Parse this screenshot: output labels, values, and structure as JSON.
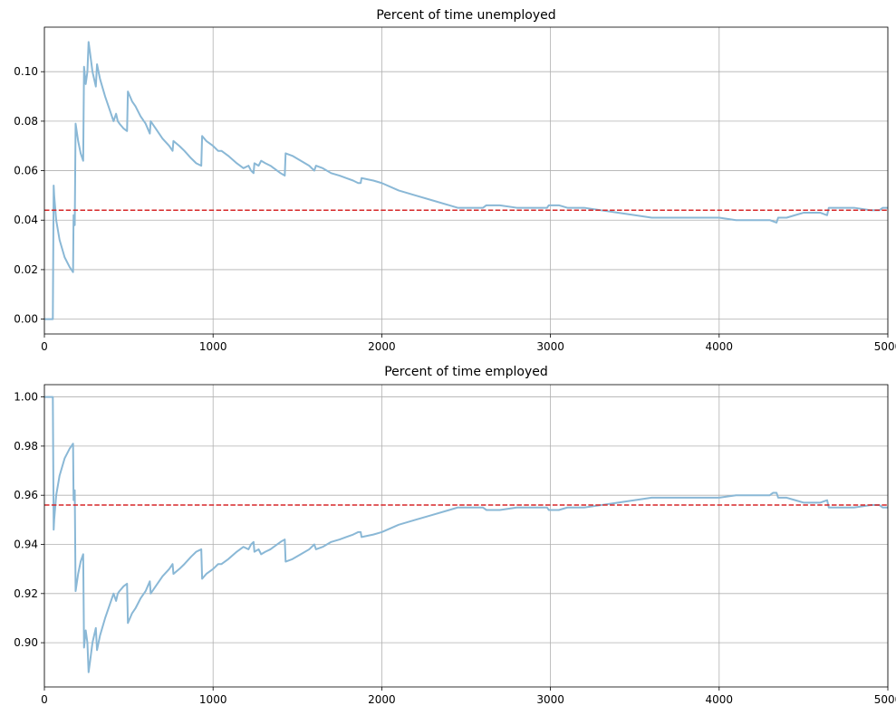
{
  "chart_data": [
    {
      "type": "line",
      "title": "Percent of time unemployed",
      "xlim": [
        0,
        5000
      ],
      "ylim": [
        -0.006,
        0.118
      ],
      "xticks": [
        0,
        1000,
        2000,
        3000,
        4000,
        5000
      ],
      "yticks": [
        0.0,
        0.02,
        0.04,
        0.06,
        0.08,
        0.1
      ],
      "ytick_decimals": 2,
      "grid": true,
      "series": [
        {
          "color": "#8ab8d6",
          "points": [
            [
              0,
              0
            ],
            [
              50,
              0
            ],
            [
              55,
              0.054
            ],
            [
              58,
              0.05
            ],
            [
              70,
              0.04
            ],
            [
              90,
              0.032
            ],
            [
              120,
              0.025
            ],
            [
              150,
              0.021
            ],
            [
              170,
              0.019
            ],
            [
              173,
              0.042
            ],
            [
              180,
              0.038
            ],
            [
              185,
              0.079
            ],
            [
              200,
              0.072
            ],
            [
              215,
              0.067
            ],
            [
              230,
              0.064
            ],
            [
              235,
              0.102
            ],
            [
              245,
              0.095
            ],
            [
              255,
              0.1
            ],
            [
              262,
              0.112
            ],
            [
              270,
              0.108
            ],
            [
              285,
              0.1
            ],
            [
              305,
              0.094
            ],
            [
              312,
              0.103
            ],
            [
              330,
              0.097
            ],
            [
              360,
              0.09
            ],
            [
              390,
              0.084
            ],
            [
              410,
              0.08
            ],
            [
              425,
              0.083
            ],
            [
              435,
              0.08
            ],
            [
              445,
              0.079
            ],
            [
              470,
              0.077
            ],
            [
              490,
              0.076
            ],
            [
              495,
              0.092
            ],
            [
              520,
              0.088
            ],
            [
              540,
              0.086
            ],
            [
              570,
              0.082
            ],
            [
              600,
              0.079
            ],
            [
              625,
              0.075
            ],
            [
              630,
              0.08
            ],
            [
              660,
              0.077
            ],
            [
              700,
              0.073
            ],
            [
              740,
              0.07
            ],
            [
              760,
              0.068
            ],
            [
              765,
              0.072
            ],
            [
              800,
              0.07
            ],
            [
              830,
              0.068
            ],
            [
              870,
              0.065
            ],
            [
              900,
              0.063
            ],
            [
              930,
              0.062
            ],
            [
              935,
              0.074
            ],
            [
              960,
              0.072
            ],
            [
              1000,
              0.07
            ],
            [
              1030,
              0.068
            ],
            [
              1050,
              0.068
            ],
            [
              1090,
              0.066
            ],
            [
              1140,
              0.063
            ],
            [
              1180,
              0.061
            ],
            [
              1210,
              0.062
            ],
            [
              1225,
              0.06
            ],
            [
              1240,
              0.059
            ],
            [
              1245,
              0.063
            ],
            [
              1270,
              0.062
            ],
            [
              1285,
              0.064
            ],
            [
              1310,
              0.063
            ],
            [
              1340,
              0.062
            ],
            [
              1360,
              0.061
            ],
            [
              1400,
              0.059
            ],
            [
              1425,
              0.058
            ],
            [
              1430,
              0.067
            ],
            [
              1470,
              0.066
            ],
            [
              1520,
              0.064
            ],
            [
              1570,
              0.062
            ],
            [
              1600,
              0.06
            ],
            [
              1610,
              0.062
            ],
            [
              1650,
              0.061
            ],
            [
              1700,
              0.059
            ],
            [
              1750,
              0.058
            ],
            [
              1790,
              0.057
            ],
            [
              1830,
              0.056
            ],
            [
              1860,
              0.055
            ],
            [
              1875,
              0.055
            ],
            [
              1880,
              0.057
            ],
            [
              1950,
              0.056
            ],
            [
              2000,
              0.055
            ],
            [
              2100,
              0.052
            ],
            [
              2200,
              0.05
            ],
            [
              2300,
              0.048
            ],
            [
              2400,
              0.046
            ],
            [
              2450,
              0.045
            ],
            [
              2500,
              0.045
            ],
            [
              2550,
              0.045
            ],
            [
              2600,
              0.045
            ],
            [
              2620,
              0.046
            ],
            [
              2700,
              0.046
            ],
            [
              2800,
              0.045
            ],
            [
              2900,
              0.045
            ],
            [
              2980,
              0.045
            ],
            [
              2990,
              0.046
            ],
            [
              3000,
              0.046
            ],
            [
              3050,
              0.046
            ],
            [
              3100,
              0.045
            ],
            [
              3200,
              0.045
            ],
            [
              3300,
              0.044
            ],
            [
              3400,
              0.043
            ],
            [
              3500,
              0.042
            ],
            [
              3600,
              0.041
            ],
            [
              3700,
              0.041
            ],
            [
              3800,
              0.041
            ],
            [
              3900,
              0.041
            ],
            [
              4000,
              0.041
            ],
            [
              4100,
              0.04
            ],
            [
              4200,
              0.04
            ],
            [
              4300,
              0.04
            ],
            [
              4340,
              0.039
            ],
            [
              4350,
              0.041
            ],
            [
              4400,
              0.041
            ],
            [
              4450,
              0.042
            ],
            [
              4500,
              0.043
            ],
            [
              4550,
              0.043
            ],
            [
              4600,
              0.043
            ],
            [
              4640,
              0.042
            ],
            [
              4650,
              0.045
            ],
            [
              4700,
              0.045
            ],
            [
              4800,
              0.045
            ],
            [
              4900,
              0.044
            ],
            [
              4950,
              0.044
            ],
            [
              4970,
              0.045
            ],
            [
              5000,
              0.045
            ]
          ]
        },
        {
          "color": "#d62728",
          "dashed": true,
          "points": [
            [
              0,
              0.044
            ],
            [
              5000,
              0.044
            ]
          ]
        }
      ]
    },
    {
      "type": "line",
      "title": "Percent of time employed",
      "xlim": [
        0,
        5000
      ],
      "ylim": [
        0.882,
        1.005
      ],
      "xticks": [
        0,
        1000,
        2000,
        3000,
        4000,
        5000
      ],
      "yticks": [
        0.9,
        0.92,
        0.94,
        0.96,
        0.98,
        1.0
      ],
      "ytick_decimals": 2,
      "grid": true,
      "series": [
        {
          "color": "#8ab8d6",
          "points": [
            [
              0,
              1.0
            ],
            [
              50,
              1.0
            ],
            [
              55,
              0.946
            ],
            [
              58,
              0.95
            ],
            [
              70,
              0.96
            ],
            [
              90,
              0.968
            ],
            [
              120,
              0.975
            ],
            [
              150,
              0.979
            ],
            [
              170,
              0.981
            ],
            [
              173,
              0.958
            ],
            [
              180,
              0.962
            ],
            [
              185,
              0.921
            ],
            [
              200,
              0.928
            ],
            [
              215,
              0.933
            ],
            [
              230,
              0.936
            ],
            [
              235,
              0.898
            ],
            [
              245,
              0.905
            ],
            [
              255,
              0.9
            ],
            [
              262,
              0.888
            ],
            [
              270,
              0.892
            ],
            [
              285,
              0.9
            ],
            [
              305,
              0.906
            ],
            [
              312,
              0.897
            ],
            [
              330,
              0.903
            ],
            [
              360,
              0.91
            ],
            [
              390,
              0.916
            ],
            [
              410,
              0.92
            ],
            [
              425,
              0.917
            ],
            [
              435,
              0.92
            ],
            [
              445,
              0.921
            ],
            [
              470,
              0.923
            ],
            [
              490,
              0.924
            ],
            [
              495,
              0.908
            ],
            [
              520,
              0.912
            ],
            [
              540,
              0.914
            ],
            [
              570,
              0.918
            ],
            [
              600,
              0.921
            ],
            [
              625,
              0.925
            ],
            [
              630,
              0.92
            ],
            [
              660,
              0.923
            ],
            [
              700,
              0.927
            ],
            [
              740,
              0.93
            ],
            [
              760,
              0.932
            ],
            [
              765,
              0.928
            ],
            [
              800,
              0.93
            ],
            [
              830,
              0.932
            ],
            [
              870,
              0.935
            ],
            [
              900,
              0.937
            ],
            [
              930,
              0.938
            ],
            [
              935,
              0.926
            ],
            [
              960,
              0.928
            ],
            [
              1000,
              0.93
            ],
            [
              1030,
              0.932
            ],
            [
              1050,
              0.932
            ],
            [
              1090,
              0.934
            ],
            [
              1140,
              0.937
            ],
            [
              1180,
              0.939
            ],
            [
              1210,
              0.938
            ],
            [
              1225,
              0.94
            ],
            [
              1240,
              0.941
            ],
            [
              1245,
              0.937
            ],
            [
              1270,
              0.938
            ],
            [
              1285,
              0.936
            ],
            [
              1310,
              0.937
            ],
            [
              1340,
              0.938
            ],
            [
              1360,
              0.939
            ],
            [
              1400,
              0.941
            ],
            [
              1425,
              0.942
            ],
            [
              1430,
              0.933
            ],
            [
              1470,
              0.934
            ],
            [
              1520,
              0.936
            ],
            [
              1570,
              0.938
            ],
            [
              1600,
              0.94
            ],
            [
              1610,
              0.938
            ],
            [
              1650,
              0.939
            ],
            [
              1700,
              0.941
            ],
            [
              1750,
              0.942
            ],
            [
              1790,
              0.943
            ],
            [
              1830,
              0.944
            ],
            [
              1860,
              0.945
            ],
            [
              1875,
              0.945
            ],
            [
              1880,
              0.943
            ],
            [
              1950,
              0.944
            ],
            [
              2000,
              0.945
            ],
            [
              2100,
              0.948
            ],
            [
              2200,
              0.95
            ],
            [
              2300,
              0.952
            ],
            [
              2400,
              0.954
            ],
            [
              2450,
              0.955
            ],
            [
              2500,
              0.955
            ],
            [
              2550,
              0.955
            ],
            [
              2600,
              0.955
            ],
            [
              2620,
              0.954
            ],
            [
              2700,
              0.954
            ],
            [
              2800,
              0.955
            ],
            [
              2900,
              0.955
            ],
            [
              2980,
              0.955
            ],
            [
              2990,
              0.954
            ],
            [
              3000,
              0.954
            ],
            [
              3050,
              0.954
            ],
            [
              3100,
              0.955
            ],
            [
              3200,
              0.955
            ],
            [
              3300,
              0.956
            ],
            [
              3400,
              0.957
            ],
            [
              3500,
              0.958
            ],
            [
              3600,
              0.959
            ],
            [
              3700,
              0.959
            ],
            [
              3800,
              0.959
            ],
            [
              3900,
              0.959
            ],
            [
              4000,
              0.959
            ],
            [
              4100,
              0.96
            ],
            [
              4200,
              0.96
            ],
            [
              4300,
              0.96
            ],
            [
              4320,
              0.961
            ],
            [
              4340,
              0.961
            ],
            [
              4350,
              0.959
            ],
            [
              4400,
              0.959
            ],
            [
              4450,
              0.958
            ],
            [
              4500,
              0.957
            ],
            [
              4550,
              0.957
            ],
            [
              4600,
              0.957
            ],
            [
              4640,
              0.958
            ],
            [
              4650,
              0.955
            ],
            [
              4700,
              0.955
            ],
            [
              4800,
              0.955
            ],
            [
              4900,
              0.956
            ],
            [
              4950,
              0.956
            ],
            [
              4970,
              0.955
            ],
            [
              5000,
              0.955
            ]
          ]
        },
        {
          "color": "#d62728",
          "dashed": true,
          "points": [
            [
              0,
              0.956
            ],
            [
              5000,
              0.956
            ]
          ]
        }
      ]
    }
  ]
}
